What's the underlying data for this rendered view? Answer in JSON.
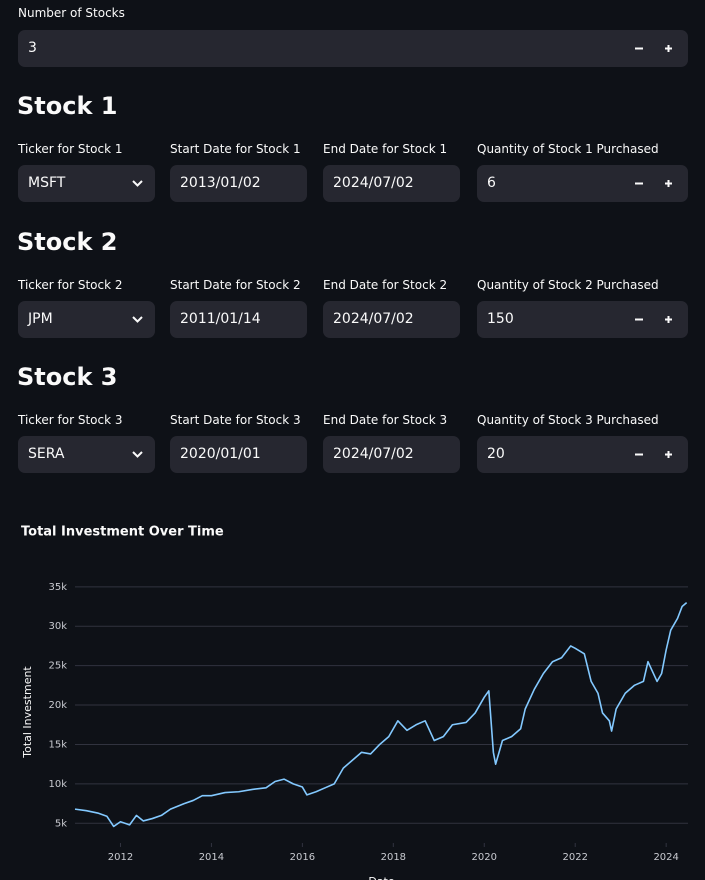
{
  "number_of_stocks": {
    "label": "Number of Stocks",
    "value": "3"
  },
  "stocks": [
    {
      "heading": "Stock 1",
      "ticker_label": "Ticker for Stock 1",
      "ticker": "MSFT",
      "start_label": "Start Date for Stock 1",
      "start_date": "2013/01/02",
      "end_label": "End Date for Stock 1",
      "end_date": "2024/07/02",
      "quantity_label": "Quantity of Stock 1 Purchased",
      "quantity": "6"
    },
    {
      "heading": "Stock 2",
      "ticker_label": "Ticker for Stock 2",
      "ticker": "JPM",
      "start_label": "Start Date for Stock 2",
      "start_date": "2011/01/14",
      "end_label": "End Date for Stock 2",
      "end_date": "2024/07/02",
      "quantity_label": "Quantity of Stock 2 Purchased",
      "quantity": "150"
    },
    {
      "heading": "Stock 3",
      "ticker_label": "Ticker for Stock 3",
      "ticker": "SERA",
      "start_label": "Start Date for Stock 3",
      "start_date": "2020/01/01",
      "end_label": "End Date for Stock 3",
      "end_date": "2024/07/02",
      "quantity_label": "Quantity of Stock 3 Purchased",
      "quantity": "20"
    }
  ],
  "chart_data": {
    "type": "line",
    "title": "Total Investment Over Time",
    "x_label": "Date",
    "y_label": "Total Investment",
    "x": [
      2011.0,
      2011.25,
      2011.5,
      2011.7,
      2011.85,
      2012.0,
      2012.2,
      2012.35,
      2012.5,
      2012.7,
      2012.9,
      2013.1,
      2013.4,
      2013.6,
      2013.8,
      2014.0,
      2014.3,
      2014.6,
      2014.9,
      2015.2,
      2015.4,
      2015.6,
      2015.8,
      2016.0,
      2016.1,
      2016.3,
      2016.5,
      2016.7,
      2016.9,
      2017.1,
      2017.3,
      2017.5,
      2017.7,
      2017.9,
      2018.1,
      2018.3,
      2018.5,
      2018.7,
      2018.9,
      2019.1,
      2019.3,
      2019.6,
      2019.8,
      2020.0,
      2020.1,
      2020.2,
      2020.25,
      2020.4,
      2020.6,
      2020.8,
      2020.9,
      2021.1,
      2021.3,
      2021.5,
      2021.7,
      2021.9,
      2022.0,
      2022.2,
      2022.35,
      2022.5,
      2022.6,
      2022.75,
      2022.8,
      2022.9,
      2023.1,
      2023.3,
      2023.5,
      2023.6,
      2023.8,
      2023.9,
      2024.0,
      2024.1,
      2024.25,
      2024.35,
      2024.45
    ],
    "values": [
      6800,
      6600,
      6300,
      5900,
      4600,
      5200,
      4800,
      6000,
      5300,
      5600,
      6000,
      6800,
      7500,
      7900,
      8500,
      8500,
      8900,
      9000,
      9300,
      9500,
      10300,
      10600,
      10000,
      9600,
      8600,
      9000,
      9500,
      10000,
      12000,
      13000,
      14000,
      13800,
      15000,
      16000,
      18000,
      16800,
      17500,
      18000,
      15500,
      16000,
      17500,
      17800,
      19000,
      21000,
      21800,
      14000,
      12500,
      15500,
      16000,
      17000,
      19500,
      22000,
      24000,
      25500,
      26000,
      27500,
      27200,
      26500,
      23000,
      21500,
      19000,
      18000,
      16700,
      19500,
      21500,
      22500,
      23000,
      25500,
      23000,
      24000,
      27000,
      29500,
      31000,
      32500,
      33000
    ],
    "color": "#83c9ff",
    "xlim": [
      2011.0,
      2024.48
    ],
    "ylim": [
      2500,
      36500
    ],
    "xticks": [
      2012,
      2014,
      2016,
      2018,
      2020,
      2022,
      2024
    ],
    "yticks": [
      {
        "value": 5000,
        "label": "5k"
      },
      {
        "value": 10000,
        "label": "10k"
      },
      {
        "value": 15000,
        "label": "15k"
      },
      {
        "value": 20000,
        "label": "20k"
      },
      {
        "value": 25000,
        "label": "25k"
      },
      {
        "value": 30000,
        "label": "30k"
      },
      {
        "value": 35000,
        "label": "35k"
      }
    ],
    "grid": true
  }
}
